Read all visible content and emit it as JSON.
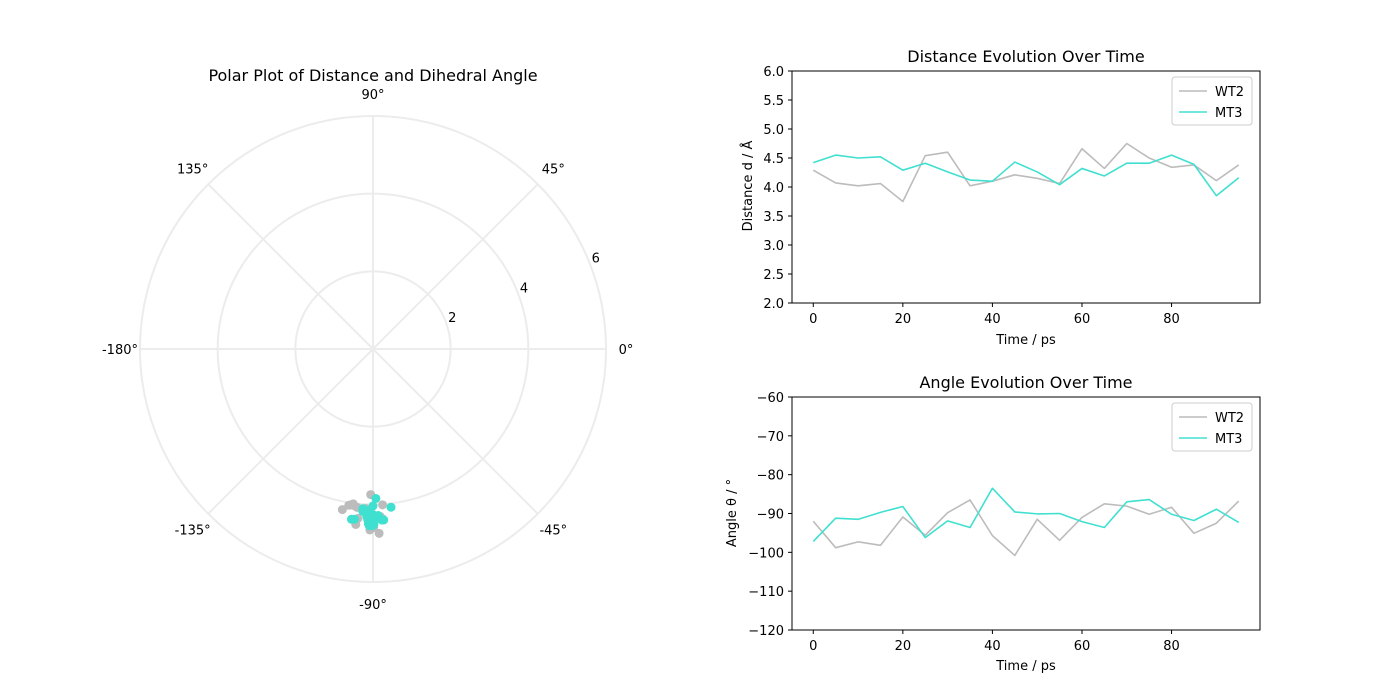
{
  "chart_data": [
    {
      "type": "scatter",
      "projection": "polar",
      "title": "Polar Plot of Distance and Dihedral Angle",
      "radial_ticks": [
        2,
        4,
        6
      ],
      "rlim": [
        0,
        6
      ],
      "angle_tick_labels": [
        "0°",
        "45°",
        "90°",
        "135°",
        "-180°",
        "-135°",
        "-90°",
        "-45°"
      ],
      "angle_ticks_deg": [
        0,
        45,
        90,
        135,
        180,
        225,
        270,
        315
      ],
      "grid": true,
      "series": [
        {
          "name": "WT2",
          "color": "#bcbcbc",
          "theta_deg": [
            -92.0,
            -98.8,
            -97.3,
            -98.2,
            -90.9,
            -95.6,
            -89.8,
            -86.5,
            -95.7,
            -100.8,
            -91.5,
            -96.9,
            -91.0,
            -87.5,
            -88.1,
            -90.2,
            -88.4,
            -95.1,
            -92.5,
            -86.8
          ],
          "r": [
            4.29,
            4.07,
            4.02,
            4.06,
            3.75,
            4.54,
            4.6,
            4.02,
            4.1,
            4.21,
            4.15,
            4.06,
            4.66,
            4.32,
            4.75,
            4.5,
            4.34,
            4.38,
            4.11,
            4.38
          ]
        },
        {
          "name": "MT3",
          "color": "#40e0d0",
          "theta_deg": [
            -97.2,
            -91.2,
            -91.5,
            -89.7,
            -88.2,
            -96.2,
            -91.9,
            -93.6,
            -83.5,
            -89.6,
            -90.1,
            -90.0,
            -92.1,
            -93.6,
            -87.0,
            -86.4,
            -90.2,
            -91.8,
            -88.9,
            -92.3
          ],
          "r": [
            4.42,
            4.55,
            4.5,
            4.52,
            4.29,
            4.41,
            4.26,
            4.12,
            4.1,
            4.43,
            4.26,
            4.04,
            4.32,
            4.19,
            4.41,
            4.41,
            4.55,
            4.39,
            3.85,
            4.16
          ]
        }
      ]
    },
    {
      "type": "line",
      "title": "Distance Evolution Over Time",
      "xlabel": "Time / ps",
      "ylabel": "Distance d / Å",
      "xlim": [
        -4.75,
        99.75
      ],
      "ylim": [
        2.0,
        6.0
      ],
      "x_ticks": [
        0,
        20,
        40,
        60,
        80
      ],
      "y_ticks": [
        2.0,
        2.5,
        3.0,
        3.5,
        4.0,
        4.5,
        5.0,
        5.5,
        6.0
      ],
      "legend": "upper right",
      "x": [
        0,
        5,
        10,
        15,
        20,
        25,
        30,
        35,
        40,
        45,
        50,
        55,
        60,
        65,
        70,
        75,
        80,
        85,
        90,
        95
      ],
      "series": [
        {
          "name": "WT2",
          "color": "#bcbcbc",
          "values": [
            4.29,
            4.07,
            4.02,
            4.06,
            3.75,
            4.54,
            4.6,
            4.02,
            4.1,
            4.21,
            4.15,
            4.06,
            4.66,
            4.32,
            4.75,
            4.5,
            4.34,
            4.38,
            4.11,
            4.38
          ]
        },
        {
          "name": "MT3",
          "color": "#40e0d0",
          "values": [
            4.42,
            4.55,
            4.5,
            4.52,
            4.29,
            4.41,
            4.26,
            4.12,
            4.1,
            4.43,
            4.26,
            4.04,
            4.32,
            4.19,
            4.41,
            4.41,
            4.55,
            4.39,
            3.85,
            4.16
          ]
        }
      ]
    },
    {
      "type": "line",
      "title": "Angle Evolution Over Time",
      "xlabel": "Time / ps",
      "ylabel": "Angle θ / °",
      "xlim": [
        -4.75,
        99.75
      ],
      "ylim": [
        -120,
        -60
      ],
      "x_ticks": [
        0,
        20,
        40,
        60,
        80
      ],
      "y_ticks": [
        -120,
        -110,
        -100,
        -90,
        -80,
        -70,
        -60
      ],
      "y_tick_labels": [
        "−120",
        "−110",
        "−100",
        "−90",
        "−80",
        "−70",
        "−60"
      ],
      "legend": "upper right",
      "x": [
        0,
        5,
        10,
        15,
        20,
        25,
        30,
        35,
        40,
        45,
        50,
        55,
        60,
        65,
        70,
        75,
        80,
        85,
        90,
        95
      ],
      "series": [
        {
          "name": "WT2",
          "color": "#bcbcbc",
          "values": [
            -92.0,
            -98.8,
            -97.3,
            -98.2,
            -90.9,
            -95.6,
            -89.8,
            -86.5,
            -95.7,
            -100.8,
            -91.5,
            -96.9,
            -91.0,
            -87.5,
            -88.1,
            -90.2,
            -88.4,
            -95.1,
            -92.5,
            -86.8
          ]
        },
        {
          "name": "MT3",
          "color": "#40e0d0",
          "values": [
            -97.2,
            -91.2,
            -91.5,
            -89.7,
            -88.2,
            -96.2,
            -91.9,
            -93.6,
            -83.5,
            -89.6,
            -90.1,
            -90.0,
            -92.1,
            -93.6,
            -87.0,
            -86.4,
            -90.2,
            -91.8,
            -88.9,
            -92.3
          ]
        }
      ]
    }
  ]
}
